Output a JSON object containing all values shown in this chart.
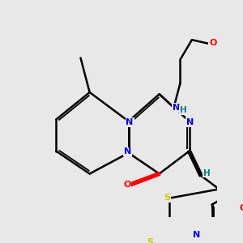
{
  "bg_color": "#e8e8e8",
  "atom_colors": {
    "N": "#0000ee",
    "O": "#ff0000",
    "S": "#cccc00",
    "C": "#000000",
    "H": "#008080"
  },
  "bond_color": "#000000",
  "bond_width": 1.8,
  "figsize": [
    3.0,
    3.0
  ],
  "dpi": 100
}
